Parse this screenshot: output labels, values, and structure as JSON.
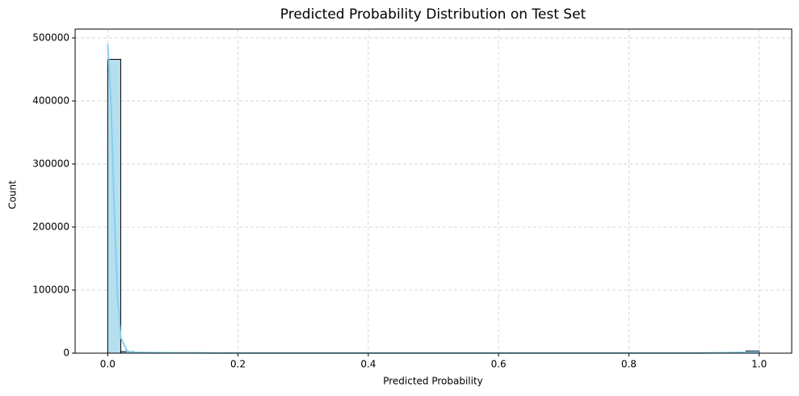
{
  "chart_data": {
    "type": "histogram",
    "title": "Predicted Probability Distribution on Test Set",
    "x_label": "Predicted Probability",
    "y_label": "Count",
    "bins": [
      0,
      0.02,
      0.04,
      0.06,
      0.08,
      0.1,
      0.12,
      0.14,
      0.16,
      0.18,
      0.2,
      0.22,
      0.24,
      0.26,
      0.28,
      0.3,
      0.32,
      0.34,
      0.36,
      0.38,
      0.4,
      0.42,
      0.44,
      0.46,
      0.48,
      0.5,
      0.52,
      0.54,
      0.56,
      0.58,
      0.6,
      0.62,
      0.64,
      0.66,
      0.68,
      0.7,
      0.72,
      0.74,
      0.76,
      0.78,
      0.8,
      0.82,
      0.84,
      0.86,
      0.88,
      0.9,
      0.92,
      0.94,
      0.96,
      0.98,
      1.0
    ],
    "values": [
      466000,
      2500,
      1200,
      800,
      600,
      500,
      450,
      420,
      400,
      380,
      360,
      350,
      340,
      330,
      320,
      310,
      300,
      300,
      290,
      290,
      280,
      280,
      270,
      270,
      260,
      260,
      260,
      250,
      250,
      250,
      250,
      240,
      240,
      240,
      240,
      240,
      240,
      250,
      250,
      250,
      260,
      260,
      270,
      280,
      300,
      320,
      350,
      400,
      600,
      3500
    ],
    "color": "#b5dfee",
    "edgecolor": "#000000",
    "kde": {
      "x": [
        0,
        0.005,
        0.01,
        0.015,
        0.02,
        0.03,
        0.04,
        0.06,
        0.1,
        0.2,
        0.4,
        0.6,
        0.8,
        0.9,
        0.95,
        0.98,
        1.0
      ],
      "values": [
        490000,
        400000,
        230000,
        90000,
        25000,
        3000,
        1500,
        1000,
        700,
        400,
        300,
        300,
        300,
        400,
        800,
        1500,
        2000
      ],
      "color": "#87ceeb"
    },
    "xlim": [
      -0.05,
      1.05
    ],
    "ylim": [
      0,
      514000
    ],
    "xticks": [
      {
        "value": 0,
        "label": "0.0"
      },
      0.2,
      0.4,
      0.6,
      0.8,
      {
        "value": 1,
        "label": "1.0"
      }
    ],
    "yticks": [
      0,
      100000,
      200000,
      300000,
      400000,
      500000
    ],
    "grid": true
  }
}
